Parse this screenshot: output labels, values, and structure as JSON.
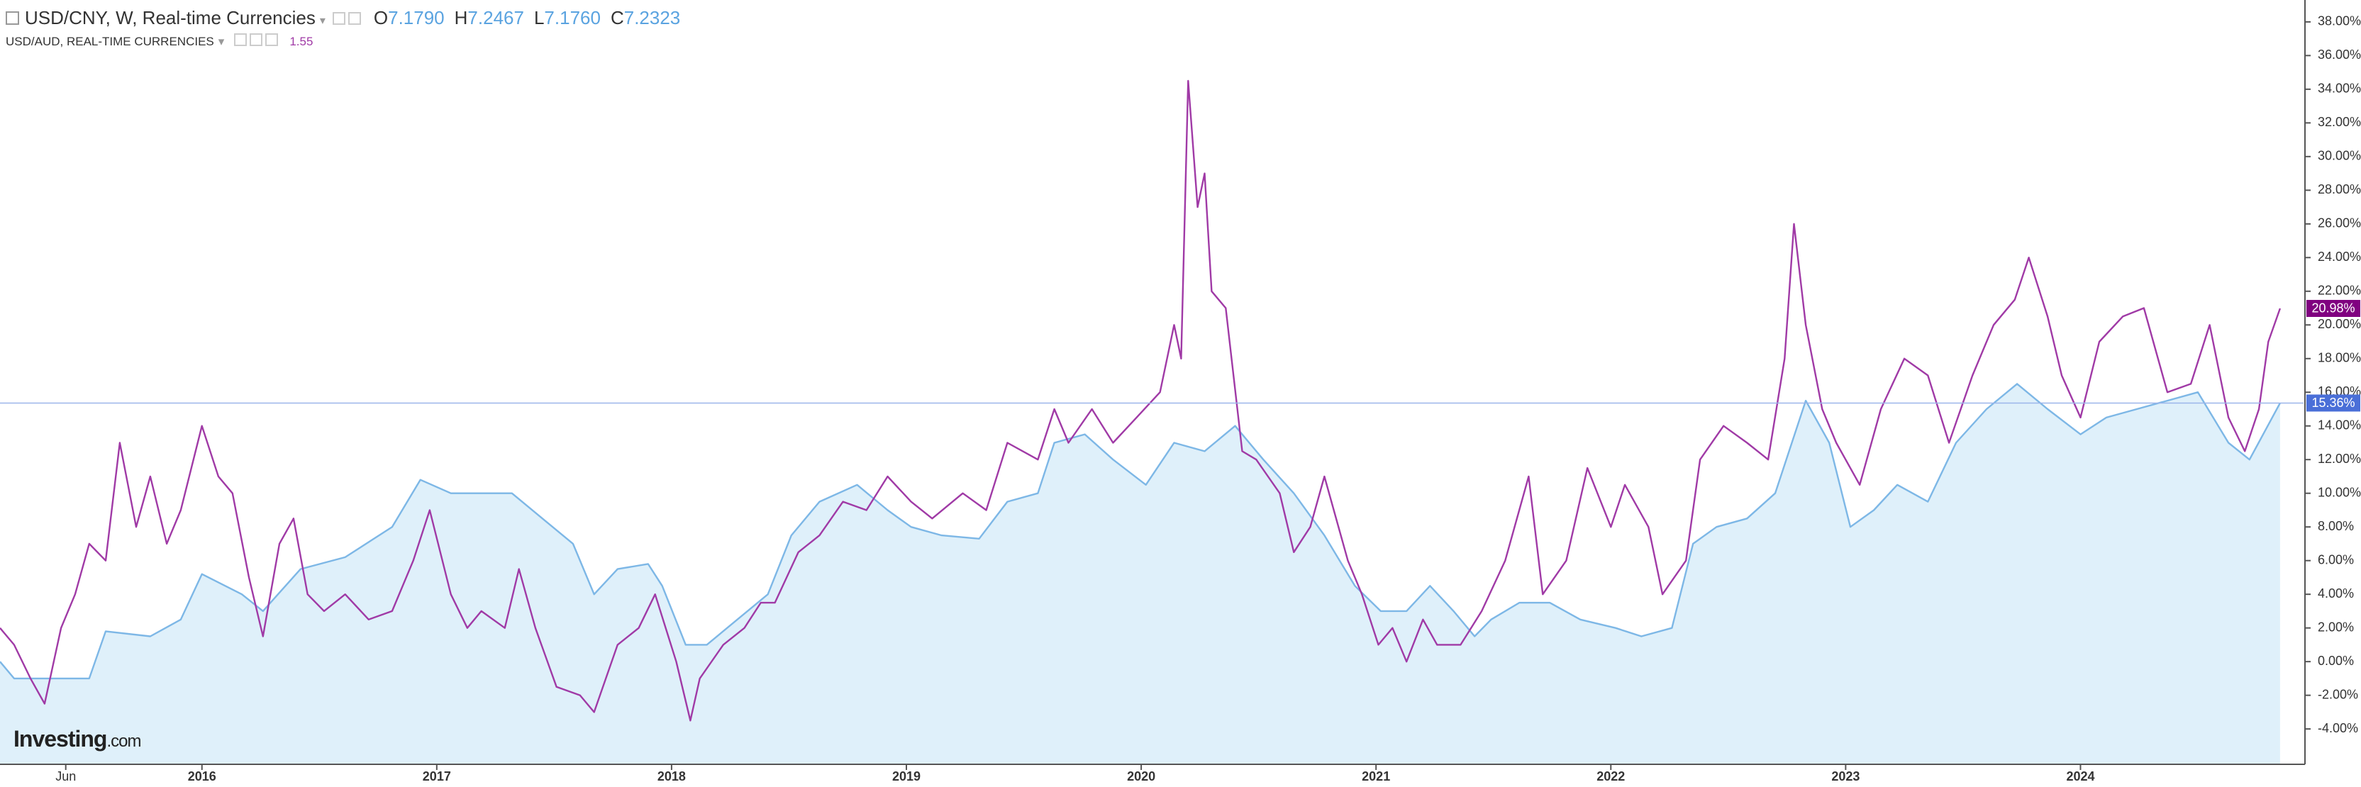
{
  "chart_data": {
    "type": "line",
    "series": [
      {
        "name": "USD/CNY, W, Real-time Currencies",
        "color": "#7db7e6",
        "area_color": "#dff0fa",
        "area": true,
        "ohlc": [
          [
            "O",
            "7.1790"
          ],
          [
            "H",
            "7.2467"
          ],
          [
            "L",
            "7.1760"
          ],
          [
            "C",
            "7.2323"
          ]
        ],
        "last_label": "15.36%",
        "label_color": "#4a6fd8",
        "x": [
          2015.14,
          2015.2,
          2015.33,
          2015.52,
          2015.59,
          2015.78,
          2015.91,
          2016.0,
          2016.17,
          2016.26,
          2016.42,
          2016.61,
          2016.81,
          2016.93,
          2017.06,
          2017.19,
          2017.32,
          2017.45,
          2017.58,
          2017.67,
          2017.77,
          2017.9,
          2017.96,
          2018.06,
          2018.15,
          2018.28,
          2018.41,
          2018.51,
          2018.63,
          2018.79,
          2018.92,
          2019.02,
          2019.15,
          2019.31,
          2019.43,
          2019.56,
          2019.63,
          2019.76,
          2019.88,
          2020.02,
          2020.14,
          2020.27,
          2020.4,
          2020.52,
          2020.65,
          2020.78,
          2020.91,
          2021.02,
          2021.13,
          2021.23,
          2021.33,
          2021.42,
          2021.49,
          2021.61,
          2021.74,
          2021.87,
          2022.02,
          2022.13,
          2022.26,
          2022.35,
          2022.45,
          2022.58,
          2022.7,
          2022.83,
          2022.93,
          2023.02,
          2023.12,
          2023.22,
          2023.35,
          2023.47,
          2023.6,
          2023.73,
          2023.86,
          2024.0,
          2024.11,
          2024.24,
          2024.37,
          2024.5,
          2024.63,
          2024.72,
          2024.85
        ],
        "values": [
          0,
          -1,
          -1,
          -1,
          1.8,
          1.5,
          2.5,
          5.2,
          4,
          3,
          5.5,
          6.2,
          8,
          10.8,
          10,
          10,
          10,
          8.5,
          7,
          4,
          5.5,
          5.8,
          4.5,
          1,
          1,
          2.5,
          4,
          7.5,
          9.5,
          10.5,
          9,
          8,
          7.5,
          7.3,
          9.5,
          10,
          13,
          13.5,
          12,
          10.5,
          13,
          12.5,
          14,
          12,
          10,
          7.5,
          4.5,
          3,
          3,
          4.5,
          3,
          1.5,
          2.5,
          3.5,
          3.5,
          2.5,
          2,
          1.5,
          2,
          7,
          8,
          8.5,
          10,
          15.5,
          13,
          8,
          9,
          10.5,
          9.5,
          13,
          15,
          16.5,
          15,
          13.5,
          14.5,
          15,
          15.5,
          16,
          13,
          12,
          15.36
        ]
      },
      {
        "name": "USD/AUD, REAL-TIME CURRENCIES",
        "color": "#a03aa6",
        "legend_value": "1.55",
        "last_label": "20.98%",
        "label_color": "#800080",
        "x": [
          2015.14,
          2015.2,
          2015.27,
          2015.33,
          2015.4,
          2015.46,
          2015.52,
          2015.59,
          2015.65,
          2015.72,
          2015.78,
          2015.85,
          2015.91,
          2016.0,
          2016.07,
          2016.13,
          2016.2,
          2016.26,
          2016.33,
          2016.39,
          2016.45,
          2016.52,
          2016.61,
          2016.71,
          2016.81,
          2016.9,
          2016.97,
          2017.06,
          2017.13,
          2017.19,
          2017.29,
          2017.35,
          2017.42,
          2017.51,
          2017.61,
          2017.67,
          2017.77,
          2017.86,
          2017.93,
          2018.02,
          2018.08,
          2018.12,
          2018.22,
          2018.31,
          2018.38,
          2018.44,
          2018.54,
          2018.63,
          2018.73,
          2018.83,
          2018.92,
          2019.02,
          2019.11,
          2019.24,
          2019.34,
          2019.43,
          2019.56,
          2019.63,
          2019.69,
          2019.79,
          2019.88,
          2019.98,
          2020.08,
          2020.14,
          2020.17,
          2020.2,
          2020.24,
          2020.27,
          2020.3,
          2020.36,
          2020.43,
          2020.49,
          2020.59,
          2020.65,
          2020.72,
          2020.78,
          2020.88,
          2020.94,
          2021.01,
          2021.07,
          2021.13,
          2021.2,
          2021.26,
          2021.36,
          2021.45,
          2021.55,
          2021.65,
          2021.71,
          2021.81,
          2021.9,
          2022.0,
          2022.06,
          2022.16,
          2022.22,
          2022.32,
          2022.38,
          2022.48,
          2022.58,
          2022.67,
          2022.74,
          2022.78,
          2022.83,
          2022.9,
          2022.96,
          2023.06,
          2023.15,
          2023.25,
          2023.35,
          2023.44,
          2023.54,
          2023.63,
          2023.72,
          2023.78,
          2023.86,
          2023.92,
          2024.0,
          2024.08,
          2024.18,
          2024.27,
          2024.37,
          2024.47,
          2024.55,
          2024.63,
          2024.7,
          2024.76,
          2024.8,
          2024.85
        ],
        "values": [
          2,
          1,
          -1,
          -2.5,
          2,
          4,
          7,
          6,
          13,
          8,
          11,
          7,
          9,
          14,
          11,
          10,
          5,
          1.5,
          7,
          8.5,
          4,
          3,
          4,
          2.5,
          3,
          6,
          9,
          4,
          2,
          3,
          2,
          5.5,
          2,
          -1.5,
          -2,
          -3,
          1,
          2,
          4,
          0,
          -3.5,
          -1,
          1,
          2,
          3.5,
          3.5,
          6.5,
          7.5,
          9.5,
          9,
          11,
          9.5,
          8.5,
          10,
          9,
          13,
          12,
          15,
          13,
          15,
          13,
          14.5,
          16,
          20,
          18,
          34.5,
          27,
          29,
          22,
          21,
          12.5,
          12,
          10,
          6.5,
          8,
          11,
          6,
          4,
          1,
          2,
          0,
          2.5,
          1,
          1,
          3,
          6,
          11,
          4,
          6,
          11.5,
          8,
          10.5,
          8,
          4,
          6,
          12,
          14,
          13,
          12,
          18,
          26,
          20,
          15,
          13,
          10.5,
          15,
          18,
          17,
          13,
          17,
          20,
          21.5,
          24,
          20.5,
          17,
          14.5,
          19,
          20.5,
          21,
          16,
          16.5,
          20,
          14.5,
          12.5,
          15,
          19,
          20.98
        ]
      }
    ],
    "xlim": [
      2015.14,
      2024.95
    ],
    "xticks": [
      {
        "value": 2015.42,
        "label": "Jun"
      },
      2016,
      2017,
      2018,
      2019,
      2020,
      2021,
      2022,
      2023,
      2024
    ],
    "ylim": [
      -6.1,
      39.3
    ],
    "yticks": [
      {
        "value": -4,
        "label": "-4.00%"
      },
      {
        "value": -2,
        "label": "-2.00%"
      },
      {
        "value": 0,
        "label": "0.00%"
      },
      {
        "value": 2,
        "label": "2.00%"
      },
      {
        "value": 4,
        "label": "4.00%"
      },
      {
        "value": 6,
        "label": "6.00%"
      },
      {
        "value": 8,
        "label": "8.00%"
      },
      {
        "value": 10,
        "label": "10.00%"
      },
      {
        "value": 12,
        "label": "12.00%"
      },
      {
        "value": 14,
        "label": "14.00%"
      },
      {
        "value": 16,
        "label": "16.00%"
      },
      {
        "value": 18,
        "label": "18.00%"
      },
      {
        "value": 20,
        "label": "20.00%"
      },
      {
        "value": 22,
        "label": "22.00%"
      },
      {
        "value": 24,
        "label": "24.00%"
      },
      {
        "value": 26,
        "label": "26.00%"
      },
      {
        "value": 28,
        "label": "28.00%"
      },
      {
        "value": 30,
        "label": "30.00%"
      },
      {
        "value": 32,
        "label": "32.00%"
      },
      {
        "value": 34,
        "label": "34.00%"
      },
      {
        "value": 36,
        "label": "36.00%"
      },
      {
        "value": 38,
        "label": "38.00%"
      }
    ],
    "logo": [
      "Investing",
      ".com"
    ]
  }
}
